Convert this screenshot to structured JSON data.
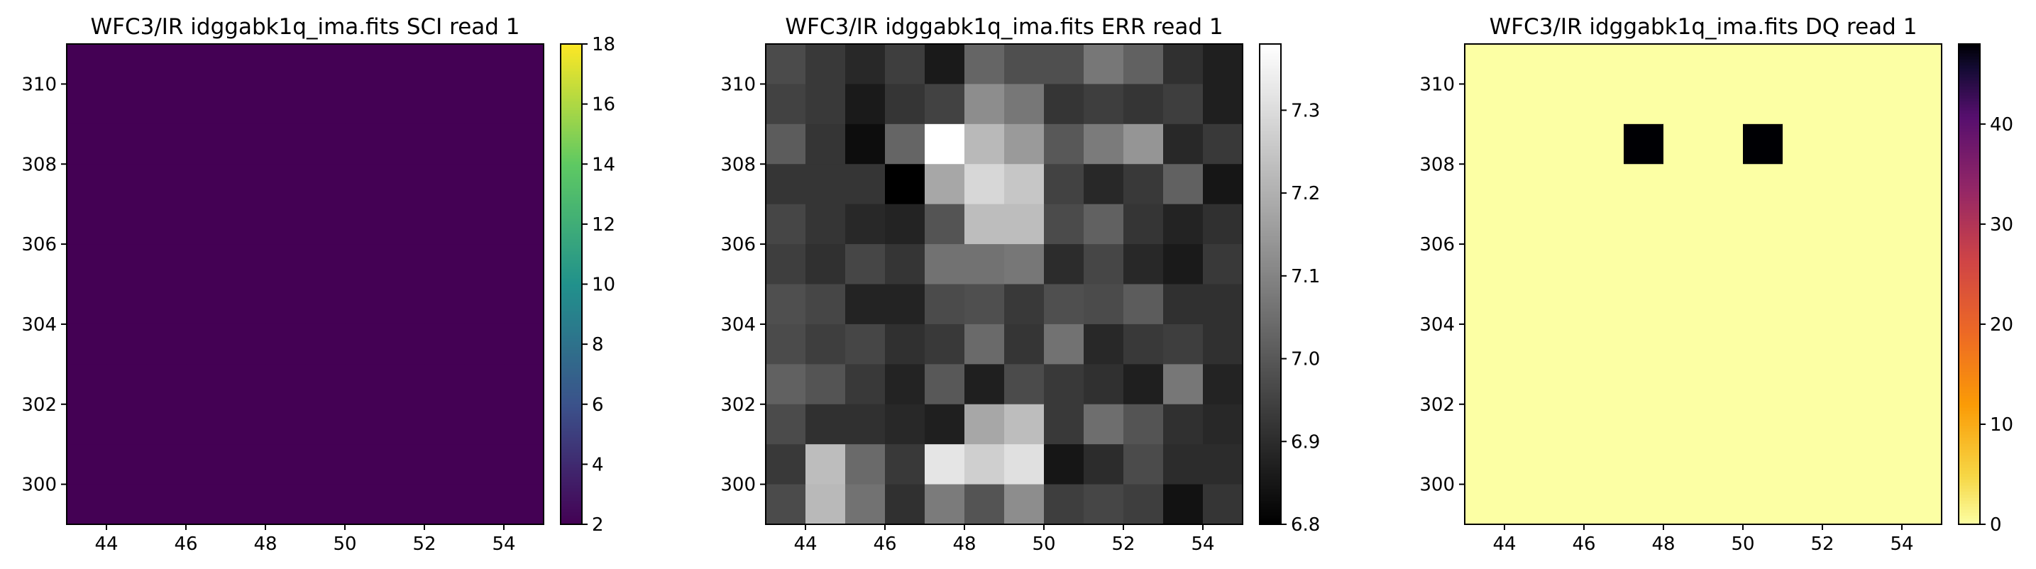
{
  "chart_data": [
    {
      "type": "heatmap",
      "title": "WFC3/IR idggabk1q_ima.fits  SCI read 1",
      "colormap": "viridis",
      "x_range": [
        43,
        55
      ],
      "y_range": [
        299,
        311
      ],
      "xticks": [
        44,
        46,
        48,
        50,
        52,
        54
      ],
      "yticks": [
        300,
        302,
        304,
        306,
        308,
        310
      ],
      "colorbar": {
        "range": [
          2,
          18
        ],
        "ticks": [
          2,
          4,
          6,
          8,
          10,
          12,
          14,
          16,
          18
        ]
      },
      "rows_top_to_bottom": [
        [
          2,
          2,
          2,
          2,
          2,
          2,
          2,
          2,
          2,
          2,
          2,
          2
        ],
        [
          2,
          2,
          2,
          2,
          2,
          2,
          2,
          2,
          2,
          2,
          2,
          2
        ],
        [
          2,
          2,
          2,
          2,
          2,
          2,
          2,
          2,
          2,
          2,
          2,
          2
        ],
        [
          2,
          2,
          2,
          2,
          2,
          2,
          2,
          2,
          2,
          2,
          2,
          2
        ],
        [
          2,
          2,
          2,
          2,
          2,
          2,
          2,
          2,
          2,
          2,
          2,
          2
        ],
        [
          2,
          2,
          2,
          2,
          2,
          2,
          2,
          2,
          2,
          2,
          2,
          2
        ],
        [
          2,
          2,
          2,
          2,
          2,
          2,
          2,
          2,
          2,
          2,
          2,
          2
        ],
        [
          2,
          2,
          2,
          2,
          2,
          2,
          2,
          2,
          2,
          2,
          2,
          2
        ],
        [
          2,
          2,
          2,
          2,
          2,
          2,
          2,
          2,
          2,
          2,
          2,
          2
        ],
        [
          2,
          2,
          2,
          2,
          2,
          2,
          2,
          2,
          2,
          2,
          2,
          2
        ],
        [
          2,
          2,
          2,
          2,
          2,
          2,
          2,
          2,
          2,
          2,
          2,
          2
        ],
        [
          2,
          2,
          2,
          2,
          2,
          2,
          2,
          2,
          2,
          2,
          2,
          2
        ]
      ]
    },
    {
      "type": "heatmap",
      "title": "WFC3/IR idggabk1q_ima.fits  ERR read 1",
      "colormap": "gray",
      "x_range": [
        43,
        55
      ],
      "y_range": [
        299,
        311
      ],
      "xticks": [
        44,
        46,
        48,
        50,
        52,
        54
      ],
      "yticks": [
        300,
        302,
        304,
        306,
        308,
        310
      ],
      "colorbar": {
        "range": [
          6.8,
          7.38
        ],
        "ticks": [
          6.8,
          6.9,
          7.0,
          7.1,
          7.2,
          7.3
        ],
        "tick_labels": [
          "6.8",
          "6.9",
          "7.0",
          "7.1",
          "7.2",
          "7.3"
        ]
      },
      "rows_top_to_bottom": [
        [
          6.97,
          6.93,
          6.89,
          6.94,
          6.86,
          7.03,
          6.98,
          6.98,
          7.07,
          7.02,
          6.91,
          6.87
        ],
        [
          6.95,
          6.93,
          6.86,
          6.92,
          6.95,
          7.12,
          7.07,
          6.92,
          6.94,
          6.92,
          6.94,
          6.87
        ],
        [
          7.01,
          6.92,
          6.83,
          7.03,
          7.38,
          7.22,
          7.15,
          7.0,
          7.08,
          7.14,
          6.89,
          6.93
        ],
        [
          6.92,
          6.92,
          6.92,
          6.8,
          7.18,
          7.29,
          7.25,
          6.95,
          6.89,
          6.93,
          7.02,
          6.85
        ],
        [
          6.96,
          6.92,
          6.89,
          6.88,
          6.99,
          7.23,
          7.23,
          6.97,
          7.02,
          6.92,
          6.88,
          6.91
        ],
        [
          6.94,
          6.91,
          6.96,
          6.92,
          7.06,
          7.06,
          7.07,
          6.9,
          6.96,
          6.89,
          6.86,
          6.93
        ],
        [
          6.98,
          6.96,
          6.88,
          6.88,
          6.97,
          6.98,
          6.93,
          6.98,
          6.97,
          7.01,
          6.91,
          6.91
        ],
        [
          6.97,
          6.94,
          6.96,
          6.91,
          6.93,
          7.04,
          6.92,
          7.06,
          6.89,
          6.93,
          6.94,
          6.91
        ],
        [
          7.02,
          6.99,
          6.93,
          6.88,
          7.0,
          6.87,
          6.97,
          6.93,
          6.91,
          6.87,
          7.07,
          6.88
        ],
        [
          6.97,
          6.91,
          6.91,
          6.89,
          6.87,
          7.18,
          7.23,
          6.93,
          7.05,
          6.99,
          6.91,
          6.89
        ],
        [
          6.93,
          7.23,
          7.04,
          6.93,
          7.32,
          7.27,
          7.31,
          6.85,
          6.9,
          6.97,
          6.9,
          6.9
        ],
        [
          6.97,
          7.22,
          7.06,
          6.91,
          7.08,
          6.99,
          7.12,
          6.94,
          6.96,
          6.94,
          6.84,
          6.92
        ]
      ]
    },
    {
      "type": "heatmap",
      "title": "WFC3/IR idggabk1q_ima.fits  DQ read 1",
      "colormap": "inferno_r",
      "x_range": [
        43,
        55
      ],
      "y_range": [
        299,
        311
      ],
      "xticks": [
        44,
        46,
        48,
        50,
        52,
        54
      ],
      "yticks": [
        300,
        302,
        304,
        306,
        308,
        310
      ],
      "colorbar": {
        "range": [
          0,
          48
        ],
        "ticks": [
          0,
          10,
          20,
          30,
          40
        ]
      },
      "rows_top_to_bottom": [
        [
          0,
          0,
          0,
          0,
          0,
          0,
          0,
          0,
          0,
          0,
          0,
          0
        ],
        [
          0,
          0,
          0,
          0,
          0,
          0,
          0,
          0,
          0,
          0,
          0,
          0
        ],
        [
          0,
          0,
          0,
          0,
          48,
          0,
          0,
          48,
          0,
          0,
          0,
          0
        ],
        [
          0,
          0,
          0,
          0,
          0,
          0,
          0,
          0,
          0,
          0,
          0,
          0
        ],
        [
          0,
          0,
          0,
          0,
          0,
          0,
          0,
          0,
          0,
          0,
          0,
          0
        ],
        [
          0,
          0,
          0,
          0,
          0,
          0,
          0,
          0,
          0,
          0,
          0,
          0
        ],
        [
          0,
          0,
          0,
          0,
          0,
          0,
          0,
          0,
          0,
          0,
          0,
          0
        ],
        [
          0,
          0,
          0,
          0,
          0,
          0,
          0,
          0,
          0,
          0,
          0,
          0
        ],
        [
          0,
          0,
          0,
          0,
          0,
          0,
          0,
          0,
          0,
          0,
          0,
          0
        ],
        [
          0,
          0,
          0,
          0,
          0,
          0,
          0,
          0,
          0,
          0,
          0,
          0
        ],
        [
          0,
          0,
          0,
          0,
          0,
          0,
          0,
          0,
          0,
          0,
          0,
          0
        ],
        [
          0,
          0,
          0,
          0,
          0,
          0,
          0,
          0,
          0,
          0,
          0,
          0
        ]
      ]
    }
  ]
}
